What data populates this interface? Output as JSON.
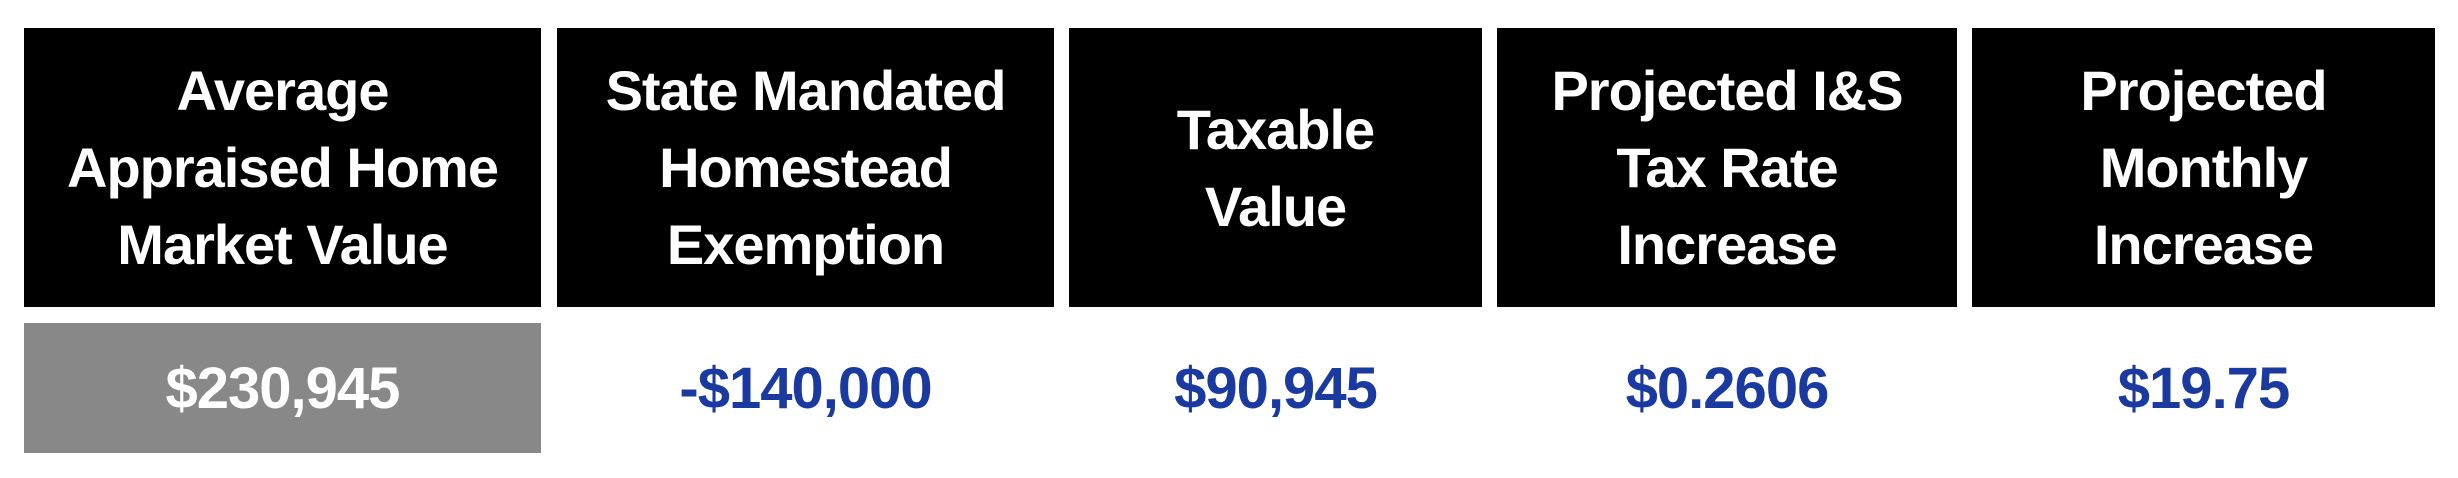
{
  "colors": {
    "header_bg": "#000000",
    "header_text": "#ffffff",
    "highlight_bg": "#888888",
    "value_text": "#1a3aa0"
  },
  "columns": [
    {
      "header": "Average Appraised Home Market Value",
      "value": "$230,945",
      "highlighted": true
    },
    {
      "header": "State Mandated Homestead Exemption",
      "value": "-$140,000",
      "highlighted": false
    },
    {
      "header": "Taxable Value",
      "value": "$90,945",
      "highlighted": false
    },
    {
      "header": "Projected I&S Tax Rate Increase",
      "value": "$0.2606",
      "highlighted": false
    },
    {
      "header": "Projected Monthly Increase",
      "value": "$19.75",
      "highlighted": false
    }
  ]
}
